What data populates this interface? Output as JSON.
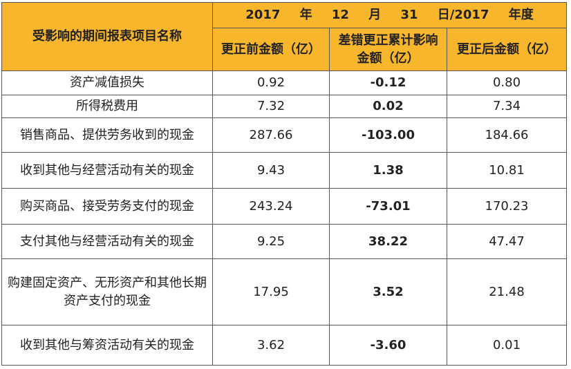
{
  "table": {
    "header": {
      "item_column": "受影响的期间报表项目名称",
      "period": "2017 年 12 月 31 日/2017 年度",
      "columns": [
        "更正前金额（亿）",
        "差错更正累计影响金额（亿）",
        "更正后金额（亿）"
      ]
    },
    "rows": [
      [
        "资产减值损失",
        "0.92",
        "-0.12",
        "0.80"
      ],
      [
        "所得税费用",
        "7.32",
        "0.02",
        "7.34"
      ],
      [
        "销售商品、提供劳务收到的现金",
        "287.66",
        "-103.00",
        "184.66"
      ],
      [
        "收到其他与经营活动有关的现金",
        "9.43",
        "1.38",
        "10.81"
      ],
      [
        "购买商品、接受劳务支付的现金",
        "243.24",
        "-73.01",
        "170.23"
      ],
      [
        "支付其他与经营活动有关的现金",
        "9.25",
        "38.22",
        "47.47"
      ],
      [
        "购建固定资产、无形资产和其他长期资产支付的现金",
        "17.95",
        "3.52",
        "21.48"
      ],
      [
        "收到其他与筹资活动有关的现金",
        "3.62",
        "-3.60",
        "0.01"
      ]
    ]
  }
}
